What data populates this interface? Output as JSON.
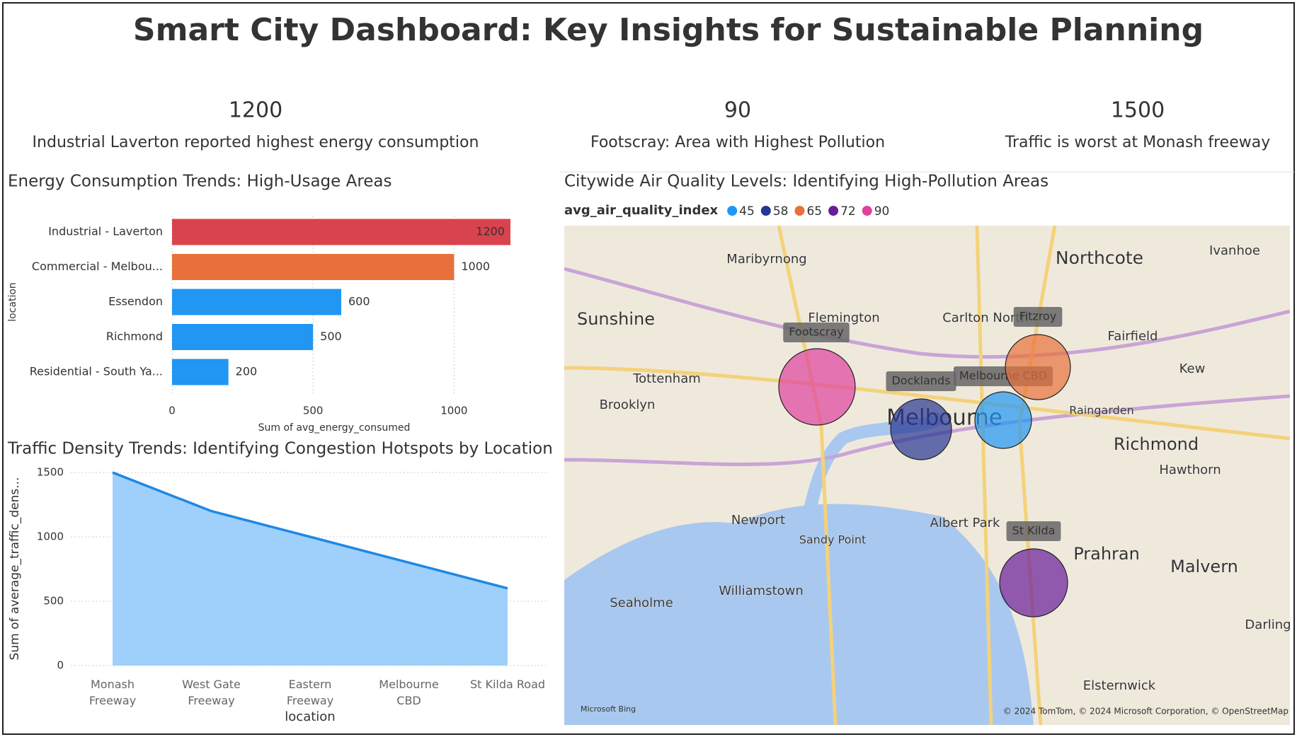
{
  "title": "Smart City Dashboard: Key Insights for Sustainable Planning",
  "kpis": [
    {
      "value": 1200,
      "label": "Industrial Laverton reported highest energy consumption"
    },
    {
      "value": 90,
      "label": "Footscray: Area with Highest Pollution"
    },
    {
      "value": 1500,
      "label": "Traffic is worst at Monash freeway"
    }
  ],
  "chart_data": [
    {
      "type": "bar",
      "title": "Energy Consumption Trends: High-Usage Areas",
      "x_label": "Sum of avg_energy_consumed",
      "y_label": "location",
      "categories": [
        "Industrial - Laverton",
        "Commercial - Melbou...",
        "Essendon",
        "Richmond",
        "Residential - South Ya..."
      ],
      "values": [
        1200,
        1000,
        600,
        500,
        200
      ],
      "colors": [
        "#d9434e",
        "#e8703a",
        "#2196f3",
        "#2196f3",
        "#2196f3"
      ],
      "xlim": [
        0,
        1200
      ],
      "xticks": [
        0,
        500,
        1000
      ],
      "grid": true
    },
    {
      "type": "area",
      "title": "Traffic Density Trends: Identifying Congestion Hotspots by Location",
      "x_label": "location",
      "y_label": "Sum of average_traffic_dens...",
      "categories": [
        "Monash Freeway",
        "West Gate Freeway",
        "Eastern Freeway",
        "Melbourne CBD",
        "St Kilda Road"
      ],
      "values": [
        1500,
        1200,
        1000,
        800,
        600
      ],
      "color": "#1e88e5",
      "fill": "#9fd0fb",
      "ylim": [
        0,
        1500
      ],
      "yticks": [
        0,
        500,
        1000,
        1500
      ],
      "grid": true
    },
    {
      "type": "map",
      "title": "Citywide Air Quality Levels: Identifying High-Pollution Areas",
      "legend_title": "avg_air_quality_index",
      "points": [
        {
          "name": "Melbourne CBD",
          "value": 45,
          "color": "#2196f3"
        },
        {
          "name": "Docklands",
          "value": 58,
          "color": "#283593"
        },
        {
          "name": "Fitzroy",
          "value": 65,
          "color": "#e8703a"
        },
        {
          "name": "St Kilda",
          "value": 72,
          "color": "#6a1b9a"
        },
        {
          "name": "Footscray",
          "value": 90,
          "color": "#e040a0"
        }
      ],
      "place_labels": [
        "Maribyrnong",
        "Northcote",
        "Ivanhoe",
        "Sunshine",
        "Flemington",
        "Carlton North",
        "Fairfield",
        "Kew",
        "Tottenham",
        "Brooklyn",
        "Melbourne",
        "Raingarden",
        "Richmond",
        "Hawthorn",
        "Newport",
        "Sandy Point",
        "Albert Park",
        "Prahran",
        "Malvern",
        "Williamstown",
        "Seaholme",
        "Elsternwick",
        "Darling"
      ],
      "attribution": [
        "Microsoft Bing",
        "© 2024 TomTom, © 2024 Microsoft Corporation, © OpenStreetMap"
      ]
    }
  ]
}
